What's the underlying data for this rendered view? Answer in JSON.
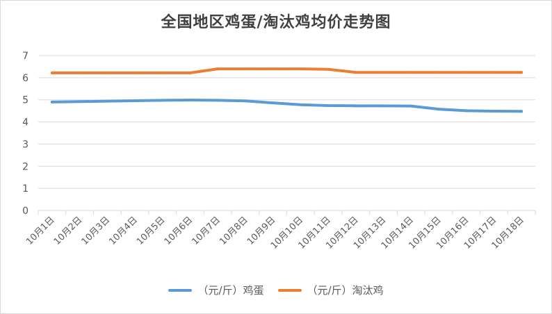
{
  "chart_data": {
    "type": "line",
    "title": "全国地区鸡蛋/淘汰鸡均价走势图",
    "categories": [
      "10月1日",
      "10月2日",
      "10月3日",
      "10月4日",
      "10月5日",
      "10月6日",
      "10月7日",
      "10月8日",
      "10月9日",
      "10月10日",
      "10月11日",
      "10月12日",
      "10月13日",
      "10月14日",
      "10月15日",
      "10月16日",
      "10月17日",
      "10月18日"
    ],
    "y_ticks": [
      "0",
      "1",
      "2",
      "3",
      "4",
      "5",
      "6",
      "7"
    ],
    "ylim": [
      0,
      7
    ],
    "grid": true,
    "legend_position": "bottom",
    "series": [
      {
        "name": "（元/斤）鸡蛋",
        "color": "#5b9bd5",
        "values": [
          4.9,
          4.92,
          4.94,
          4.96,
          4.98,
          4.99,
          4.98,
          4.95,
          4.86,
          4.78,
          4.74,
          4.73,
          4.73,
          4.72,
          4.58,
          4.51,
          4.49,
          4.48
        ]
      },
      {
        "name": "（元/斤）淘汰鸡",
        "color": "#ed7d31",
        "values": [
          6.22,
          6.22,
          6.22,
          6.22,
          6.22,
          6.22,
          6.4,
          6.4,
          6.4,
          6.4,
          6.38,
          6.24,
          6.24,
          6.24,
          6.24,
          6.24,
          6.24,
          6.24
        ]
      }
    ]
  }
}
